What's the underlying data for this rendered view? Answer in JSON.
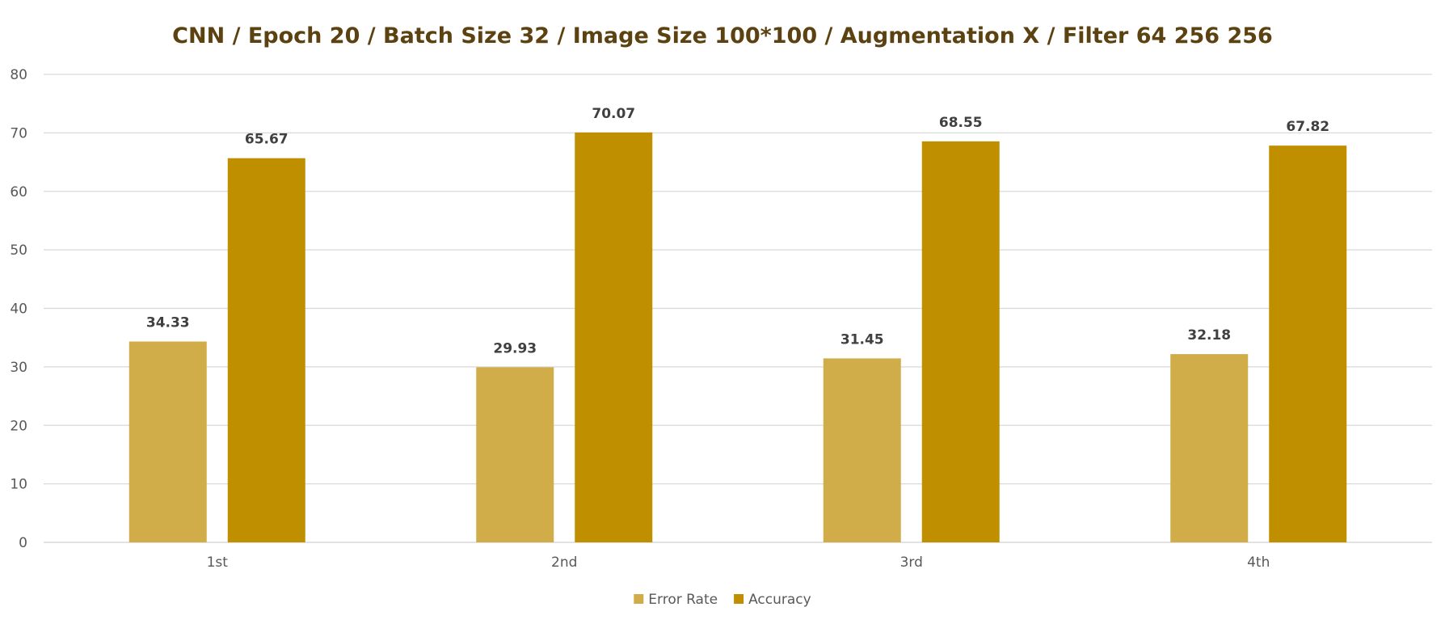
{
  "chart_data": {
    "type": "bar",
    "title": "CNN / Epoch 20 / Batch Size 32 / Image Size 100*100 / Augmentation X / Filter 64 256 256",
    "categories": [
      "1st",
      "2nd",
      "3rd",
      "4th"
    ],
    "series": [
      {
        "name": "Error Rate",
        "values": [
          34.33,
          29.93,
          31.45,
          32.18
        ],
        "labels": [
          "34.33",
          "29.93",
          "31.45",
          "32.18"
        ],
        "color": "#D0AD48"
      },
      {
        "name": "Accuracy",
        "values": [
          65.67,
          70.07,
          68.55,
          67.82
        ],
        "labels": [
          "65.67",
          "70.07",
          "68.55",
          "67.82"
        ],
        "color": "#BF8F00"
      }
    ],
    "y_ticks": [
      "0",
      "10",
      "20",
      "30",
      "40",
      "50",
      "60",
      "70",
      "80"
    ],
    "ylim": [
      0,
      80
    ],
    "xlabel": "",
    "ylabel": "",
    "grid": true,
    "legend_position": "bottom",
    "title_color": "#5C4210",
    "gridline_color": "#D9D9D9"
  }
}
